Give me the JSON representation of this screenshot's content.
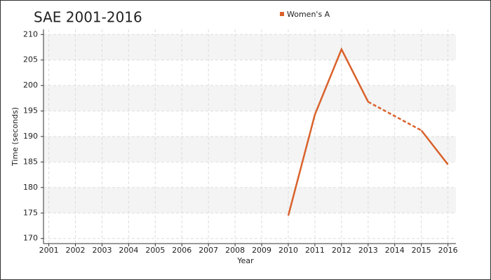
{
  "chart_data": {
    "type": "line",
    "title": "SAE 2001-2016",
    "x_label": "Year",
    "y_label": "Time (seconds)",
    "x": [
      2010,
      2011,
      2012,
      2013,
      2014,
      2015,
      2016
    ],
    "series": [
      {
        "name": "Women's A",
        "color": "#d9622b",
        "values": [
          174.5,
          194.3,
          207.1,
          196.8,
          null,
          191.2,
          184.5
        ]
      }
    ],
    "xlim": [
      2000.8,
      2016.3
    ],
    "xticks": [
      2001,
      2002,
      2003,
      2004,
      2005,
      2006,
      2007,
      2008,
      2009,
      2010,
      2011,
      2012,
      2013,
      2014,
      2015,
      2016
    ],
    "ylim": [
      169,
      211
    ],
    "yticks": [
      170,
      175,
      180,
      185,
      190,
      195,
      200,
      205,
      210
    ],
    "grid": true
  }
}
